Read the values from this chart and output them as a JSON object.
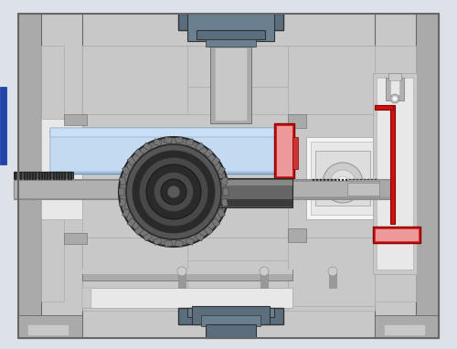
{
  "bg": "#dde2e8",
  "lg": "#c8c8c8",
  "mg": "#aaaaaa",
  "dg": "#888888",
  "vdg": "#666666",
  "ds": "#5a6e7e",
  "ds2": "#6a8090",
  "lb": "#aaccee",
  "lb2": "#c4daf0",
  "red": "#cc1111",
  "lred": "#ee9999",
  "wh": "#f5f5f5",
  "nw": "#e8e8e8",
  "st": "#999999",
  "dst": "#505050",
  "gd": "#2a2a2a",
  "gm": "#555555",
  "gml": "#777777",
  "blue_accent": "#2244aa",
  "outline": "#555555",
  "dark_outline": "#333333"
}
